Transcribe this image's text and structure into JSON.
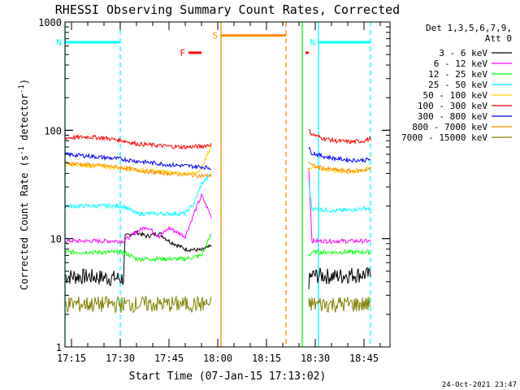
{
  "chart_data": {
    "type": "line",
    "title": "RHESSI Observing Summary Count Rates, Corrected",
    "xlabel": "Start Time (07-Jan-15 17:13:02)",
    "ylabel": "Corrected Count Rate (s⁻¹ detector⁻¹)",
    "ylabel_plain": "Corrected Count Rate (s",
    "ylabel_sup1": "-1",
    "ylabel_mid": " detector",
    "ylabel_sup2": "-1",
    "ylabel_end": ")",
    "yscale": "log",
    "xlim": [
      "17:13",
      "18:53"
    ],
    "ylim": [
      1,
      1000
    ],
    "x_ticks": [
      "17:15",
      "17:30",
      "17:45",
      "18:00",
      "18:15",
      "18:30",
      "18:45"
    ],
    "y_ticks": [
      "1",
      "10",
      "100",
      "1000"
    ],
    "legend_header": [
      "Det 1,3,5,6,7,9,",
      "Att 0"
    ],
    "legend_position": "right",
    "timestamp": "24-Oct-2021 23:47",
    "gaps": [
      [
        "17:58",
        "18:28"
      ]
    ],
    "series": [
      {
        "name": "3 - 6 keV",
        "color": "#000000",
        "x": [
          "17:13",
          "17:20",
          "17:25",
          "17:31",
          "17:31.5",
          "17:35",
          "17:38",
          "17:42",
          "17:45",
          "17:50",
          "17:55",
          "17:58",
          "18:28",
          "18:29",
          "18:32",
          "18:36",
          "18:41",
          "18:45",
          "18:47"
        ],
        "values": [
          4.5,
          4.5,
          4.4,
          4.3,
          10.5,
          11.5,
          10.5,
          11.2,
          9.5,
          8.0,
          7.8,
          8.5,
          4.0,
          4.6,
          4.6,
          4.5,
          4.7,
          4.7,
          4.6
        ]
      },
      {
        "name": "6 - 12 keV",
        "color": "#ff00ff",
        "x": [
          "17:13",
          "17:20",
          "17:25",
          "17:31",
          "17:35",
          "17:38",
          "17:42",
          "17:45",
          "17:50",
          "17:53",
          "17:55",
          "17:58",
          "18:28",
          "18:29",
          "18:32",
          "18:36",
          "18:41",
          "18:45",
          "18:47"
        ],
        "values": [
          9.5,
          9.5,
          9.5,
          9.5,
          11.5,
          13,
          10.5,
          12.5,
          10.5,
          18,
          25,
          16,
          45,
          9.5,
          9.5,
          9.5,
          9.5,
          9.5,
          9.5
        ]
      },
      {
        "name": "12 - 25 keV",
        "color": "#00ff00",
        "x": [
          "17:13",
          "17:20",
          "17:25",
          "17:31",
          "17:35",
          "17:40",
          "17:45",
          "17:50",
          "17:55",
          "17:58",
          "18:28",
          "18:29",
          "18:32",
          "18:36",
          "18:41",
          "18:45",
          "18:47"
        ],
        "values": [
          7.5,
          7.5,
          7.5,
          7.5,
          6.5,
          6.5,
          6.5,
          6.5,
          7.0,
          11,
          7.0,
          7.5,
          7.5,
          7.5,
          7.5,
          7.5,
          7.5
        ]
      },
      {
        "name": "25 - 50 keV",
        "color": "#00ffff",
        "x": [
          "17:13",
          "17:20",
          "17:25",
          "17:31",
          "17:35",
          "17:40",
          "17:45",
          "17:50",
          "17:53",
          "17:55",
          "17:58",
          "18:28",
          "18:29",
          "18:32",
          "18:36",
          "18:41",
          "18:45",
          "18:47"
        ],
        "values": [
          20,
          20,
          20,
          20,
          17,
          17,
          17,
          17,
          22,
          32,
          40,
          33,
          19,
          18.5,
          18,
          18.5,
          19,
          19
        ]
      },
      {
        "name": "50 - 100 keV",
        "color": "#ffd700",
        "x": [
          "17:13",
          "17:20",
          "17:25",
          "17:31",
          "17:35",
          "17:40",
          "17:45",
          "17:50",
          "17:53",
          "17:55",
          "17:58",
          "18:28",
          "18:29",
          "18:32",
          "18:36",
          "18:41",
          "18:45",
          "18:47"
        ],
        "values": [
          48,
          47,
          46,
          45,
          43,
          42,
          41,
          40,
          40,
          45,
          72,
          42,
          47,
          44,
          42,
          41,
          43,
          45
        ]
      },
      {
        "name": "100 - 300 keV",
        "color": "#ff0000",
        "x": [
          "17:13",
          "17:20",
          "17:25",
          "17:31",
          "17:35",
          "17:40",
          "17:45",
          "17:50",
          "17:55",
          "17:58",
          "18:28",
          "18:29",
          "18:32",
          "18:36",
          "18:41",
          "18:45",
          "18:47"
        ],
        "values": [
          85,
          87,
          85,
          80,
          75,
          73,
          71,
          70,
          71,
          74,
          100,
          92,
          85,
          80,
          78,
          80,
          84
        ]
      },
      {
        "name": "300 - 800 keV",
        "color": "#0000ff",
        "x": [
          "17:13",
          "17:20",
          "17:25",
          "17:31",
          "17:35",
          "17:40",
          "17:45",
          "17:50",
          "17:55",
          "17:58",
          "18:28",
          "18:29",
          "18:32",
          "18:36",
          "18:41",
          "18:45",
          "18:47"
        ],
        "values": [
          60,
          58,
          56,
          54,
          52,
          50,
          48,
          47,
          46,
          45,
          68,
          62,
          58,
          55,
          53,
          53,
          54
        ]
      },
      {
        "name": "800 - 7000 keV",
        "color": "#ff8c00",
        "x": [
          "17:13",
          "17:20",
          "17:25",
          "17:31",
          "17:35",
          "17:40",
          "17:45",
          "17:50",
          "17:55",
          "17:58",
          "18:28",
          "18:29",
          "18:32",
          "18:36",
          "18:41",
          "18:45",
          "18:47"
        ],
        "values": [
          50,
          48,
          47,
          45,
          43,
          41,
          40,
          39,
          38,
          38,
          52,
          47,
          45,
          43,
          42,
          43,
          44
        ]
      },
      {
        "name": "7000 - 15000 keV",
        "color": "#808000",
        "x": [
          "17:13",
          "17:20",
          "17:25",
          "17:31",
          "17:35",
          "17:40",
          "17:45",
          "17:50",
          "17:55",
          "17:58",
          "18:28",
          "18:29",
          "18:32",
          "18:36",
          "18:41",
          "18:45",
          "18:47"
        ],
        "values": [
          2.5,
          2.5,
          2.5,
          2.5,
          2.5,
          2.5,
          2.5,
          2.5,
          2.5,
          2.5,
          2.5,
          2.5,
          2.5,
          2.5,
          2.5,
          2.5,
          2.5
        ]
      }
    ],
    "flags": [
      {
        "label": "N",
        "color": "#00ffff",
        "x_start": "17:13",
        "x_end": "17:30",
        "level": 650
      },
      {
        "label": "N",
        "color": "#00ffff",
        "x_start": "18:31",
        "x_end": "18:47",
        "level": 650
      },
      {
        "label": "S",
        "color": "#ff8c00",
        "x_start": "18:01",
        "x_end": "18:21",
        "level": 750
      },
      {
        "label": "F",
        "color": "#ff0000",
        "x_start": "17:51",
        "x_end": "17:55",
        "level": 520
      },
      {
        "label": "",
        "color": "#ff0000",
        "x_start": "18:27",
        "x_end": "18:28",
        "level": 520
      }
    ],
    "vlines": [
      {
        "x": "17:13",
        "color": "#00ffff",
        "style": "solid"
      },
      {
        "x": "17:30",
        "color": "#00ffff",
        "style": "dashed"
      },
      {
        "x": "18:01",
        "color": "#ff8c00",
        "style": "solid"
      },
      {
        "x": "18:21",
        "color": "#ff8c00",
        "style": "dashed"
      },
      {
        "x": "18:26",
        "color": "#00ff00",
        "style": "solid"
      },
      {
        "x": "18:31",
        "color": "#00ffff",
        "style": "solid"
      },
      {
        "x": "18:47",
        "color": "#00ffff",
        "style": "dashed"
      }
    ]
  }
}
